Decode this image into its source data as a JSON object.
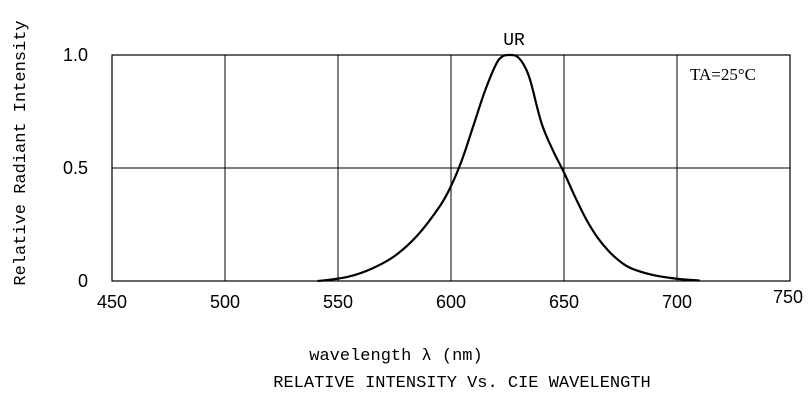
{
  "chart_data": {
    "type": "line",
    "title": "RELATIVE INTENSITY Vs. CIE WAVELENGTH",
    "xlabel": "wavelength λ (nm)",
    "ylabel": "Relative Radiant Intensity",
    "xlim": [
      450,
      750
    ],
    "ylim": [
      0,
      1.0
    ],
    "x_ticks": [
      450,
      500,
      550,
      600,
      650,
      700,
      750
    ],
    "x_tick_labels": [
      "450",
      "500",
      "550",
      "600",
      "650",
      "700",
      "750"
    ],
    "y_ticks": [
      0,
      0.5,
      1.0
    ],
    "y_tick_labels": [
      "0",
      "0.5",
      "1.0"
    ],
    "grid": true,
    "annotations": {
      "series_label": "UR",
      "condition": "TA=25°C"
    },
    "series": [
      {
        "name": "UR",
        "x": [
          541,
          546,
          555,
          565,
          575,
          585,
          595,
          600,
          605,
          610,
          615,
          620,
          623,
          626,
          629,
          632,
          635,
          640,
          645,
          650,
          655,
          660,
          665,
          670,
          675,
          680,
          690,
          700,
          710
        ],
        "y": [
          0.0,
          0.005,
          0.02,
          0.055,
          0.11,
          0.2,
          0.33,
          0.42,
          0.54,
          0.69,
          0.84,
          0.96,
          0.995,
          1.0,
          0.995,
          0.96,
          0.89,
          0.7,
          0.58,
          0.48,
          0.37,
          0.27,
          0.19,
          0.13,
          0.085,
          0.055,
          0.025,
          0.01,
          0.002
        ]
      }
    ]
  }
}
